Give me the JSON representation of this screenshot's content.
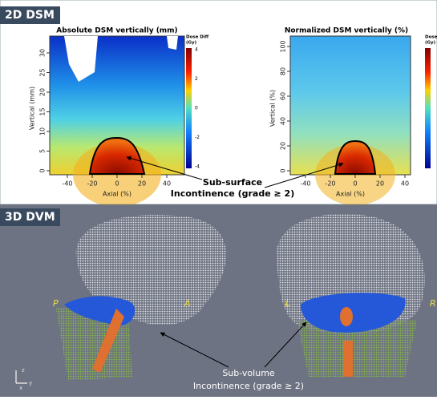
{
  "panels": {
    "dsm": {
      "label": "2D DSM",
      "left": {
        "title": "Absolute DSM vertically (mm)",
        "y_label": "Vertical (mm)",
        "x_label": "Axial (%)",
        "y_ticks": [
          "0",
          "5",
          "10",
          "15",
          "20",
          "25",
          "30"
        ],
        "x_ticks": [
          "-40",
          "-20",
          "0",
          "20",
          "40"
        ],
        "colorbar_title": [
          "Dose Diff",
          "(Gy)"
        ],
        "colorbar_ticks": [
          "4",
          "2",
          "0",
          "-2",
          "-4"
        ]
      },
      "right": {
        "title": "Normalized DSM vertically  (%)",
        "y_label": "Vertical (%)",
        "x_label": "Axial (%)",
        "y_ticks": [
          "0",
          "20",
          "40",
          "60",
          "80",
          "100"
        ],
        "x_ticks": [
          "-40",
          "-20",
          "0",
          "20",
          "40"
        ],
        "colorbar_title": [
          "Dose Diff",
          "(Gy)"
        ]
      },
      "annotation": [
        "Sub-surface",
        "Incontinence (grade ≥ 2)"
      ]
    },
    "dvm": {
      "label": "3D DVM",
      "orientation": [
        "P",
        "A",
        "L",
        "R"
      ],
      "axes": [
        "z",
        "x",
        "y"
      ],
      "annotation": [
        "Sub-volume",
        "Incontinence (grade ≥ 2)"
      ]
    }
  }
}
